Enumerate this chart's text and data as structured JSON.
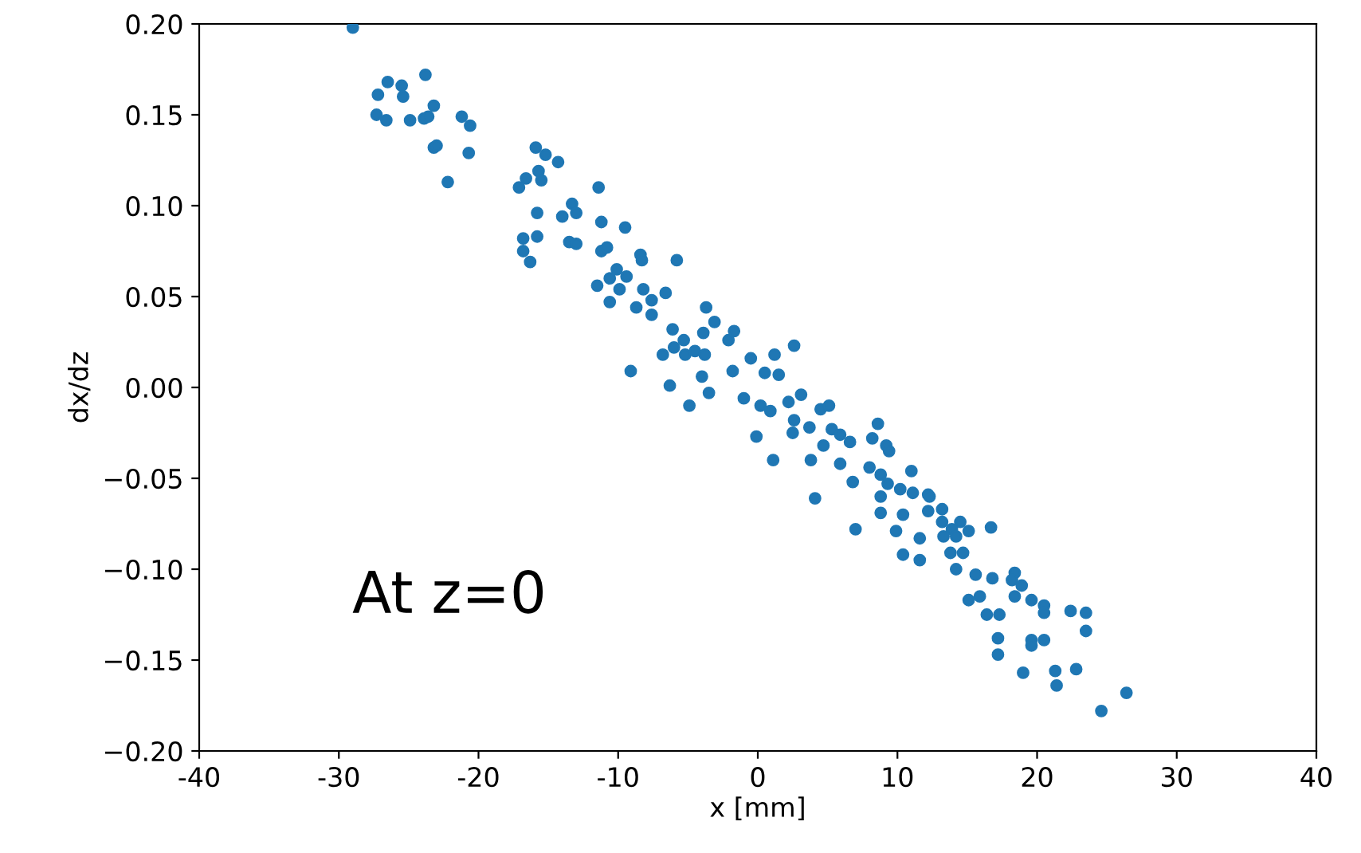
{
  "chart_data": {
    "type": "scatter",
    "xlabel": "x [mm]",
    "ylabel": "dx/dz",
    "annotations": [
      "At z=0"
    ],
    "xlim": [
      -40,
      40
    ],
    "xticks": [
      -40,
      -30,
      -20,
      -10,
      0,
      10,
      20,
      30,
      40
    ],
    "ylim": [
      -0.2,
      0.2
    ],
    "yticks": [
      {
        "value": -0.2,
        "label": "−0.20"
      },
      {
        "value": -0.15,
        "label": "−0.15"
      },
      {
        "value": -0.1,
        "label": "−0.10"
      },
      {
        "value": -0.05,
        "label": "−0.05"
      },
      {
        "value": 0,
        "label": "0.00"
      },
      {
        "value": 0.05,
        "label": "0.05"
      },
      {
        "value": 0.1,
        "label": "0.10"
      },
      {
        "value": 0.15,
        "label": "0.15"
      },
      {
        "value": 0.2,
        "label": "0.20"
      }
    ],
    "grid": false,
    "marker": "circle",
    "series": [
      {
        "color": "#1f77b4",
        "x": [
          -29.0,
          -26.5,
          -27.2,
          -25.5,
          -25.4,
          -23.8,
          -23.2,
          -27.3,
          -26.6,
          -24.9,
          -23.9,
          -23.6,
          -21.2,
          -20.6,
          -23.2,
          -23.0,
          -20.7,
          -22.2,
          -15.9,
          -15.2,
          -14.3,
          -15.7,
          -16.6,
          -17.1,
          -15.5,
          -11.4,
          -15.8,
          -16.8,
          -15.8,
          -16.8,
          -16.3,
          -14.0,
          -13.3,
          -13.0,
          -13.5,
          -13.0,
          -11.2,
          -9.5,
          -11.2,
          -10.8,
          -8.4,
          -8.3,
          -11.5,
          -10.6,
          -10.1,
          -9.4,
          -9.9,
          -10.6,
          -8.2,
          -7.6,
          -8.7,
          -7.6,
          -6.6,
          -5.8,
          -3.7,
          -3.1,
          -6.1,
          -5.3,
          -3.9,
          -2.1,
          -1.7,
          -6.8,
          -6.0,
          -5.2,
          -4.5,
          -3.8,
          -9.1,
          -6.3,
          -4.0,
          -1.8,
          -3.5,
          -4.9,
          -0.5,
          1.2,
          2.6,
          0.5,
          1.5,
          -1.0,
          0.2,
          0.9,
          2.2,
          3.1,
          4.5,
          5.1,
          2.6,
          3.7,
          2.5,
          5.3,
          5.9,
          6.6,
          -0.1,
          1.1,
          3.8,
          4.7,
          5.9,
          8.2,
          8.6,
          9.2,
          9.4,
          6.8,
          8.0,
          8.8,
          9.3,
          8.8,
          11.0,
          10.2,
          11.1,
          12.2,
          4.1,
          16.7,
          13.2,
          14.5,
          15.1,
          13.9,
          13.3,
          14.2,
          14.7,
          13.8,
          14.2,
          15.6,
          16.8,
          18.4,
          18.2,
          18.9,
          18.4,
          15.9,
          15.1,
          19.6,
          20.5,
          20.5,
          22.4,
          23.5,
          23.5,
          16.4,
          17.3,
          17.2,
          19.6,
          19.6,
          20.5,
          17.2,
          19.0,
          21.3,
          22.8,
          21.4,
          26.4,
          24.6,
          8.8,
          10.4,
          9.9,
          7.0,
          10.4,
          11.6,
          11.6,
          12.2,
          12.3,
          13.2
        ],
        "values": [
          0.198,
          0.168,
          0.161,
          0.166,
          0.16,
          0.172,
          0.155,
          0.15,
          0.147,
          0.147,
          0.148,
          0.149,
          0.149,
          0.144,
          0.132,
          0.133,
          0.129,
          0.113,
          0.132,
          0.128,
          0.124,
          0.119,
          0.115,
          0.11,
          0.114,
          0.11,
          0.096,
          0.082,
          0.083,
          0.075,
          0.069,
          0.094,
          0.101,
          0.096,
          0.08,
          0.079,
          0.091,
          0.088,
          0.075,
          0.077,
          0.073,
          0.07,
          0.056,
          0.06,
          0.065,
          0.061,
          0.054,
          0.047,
          0.054,
          0.048,
          0.044,
          0.04,
          0.052,
          0.07,
          0.044,
          0.036,
          0.032,
          0.026,
          0.03,
          0.026,
          0.031,
          0.018,
          0.022,
          0.018,
          0.02,
          0.018,
          0.009,
          0.001,
          0.006,
          0.009,
          -0.003,
          -0.01,
          0.016,
          0.018,
          0.023,
          0.008,
          0.007,
          -0.006,
          -0.01,
          -0.013,
          -0.008,
          -0.004,
          -0.012,
          -0.01,
          -0.018,
          -0.022,
          -0.025,
          -0.023,
          -0.026,
          -0.03,
          -0.027,
          -0.04,
          -0.04,
          -0.032,
          -0.042,
          -0.028,
          -0.02,
          -0.032,
          -0.035,
          -0.052,
          -0.044,
          -0.048,
          -0.053,
          -0.06,
          -0.046,
          -0.056,
          -0.058,
          -0.059,
          -0.061,
          -0.077,
          -0.067,
          -0.074,
          -0.079,
          -0.078,
          -0.082,
          -0.082,
          -0.091,
          -0.091,
          -0.1,
          -0.103,
          -0.105,
          -0.102,
          -0.106,
          -0.109,
          -0.115,
          -0.115,
          -0.117,
          -0.117,
          -0.12,
          -0.124,
          -0.123,
          -0.124,
          -0.134,
          -0.125,
          -0.125,
          -0.138,
          -0.139,
          -0.142,
          -0.139,
          -0.147,
          -0.157,
          -0.156,
          -0.155,
          -0.164,
          -0.168,
          -0.178,
          -0.069,
          -0.07,
          -0.079,
          -0.078,
          -0.092,
          -0.095,
          -0.083,
          -0.068,
          -0.06,
          -0.074
        ]
      }
    ]
  }
}
